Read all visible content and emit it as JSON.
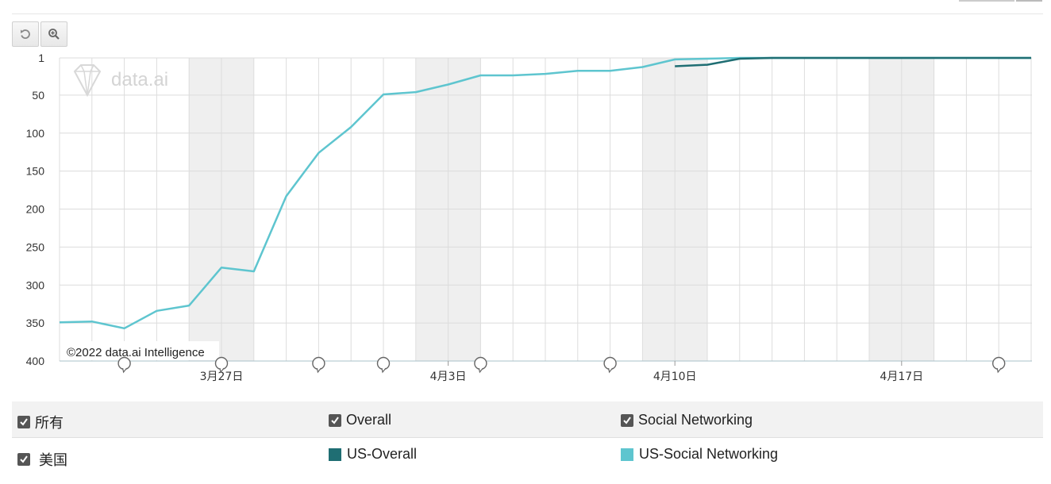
{
  "toolbar": {
    "reset_icon": "undo-icon",
    "zoom_icon": "zoom-in-icon"
  },
  "watermark": {
    "logo_text": "data.ai",
    "copyright": "©2022 data.ai Intelligence"
  },
  "chart_data": {
    "type": "line",
    "y_axis": {
      "reversed": true,
      "range": [
        1,
        400
      ],
      "ticks": [
        1,
        50,
        100,
        150,
        200,
        250,
        300,
        350,
        400
      ]
    },
    "x_axis": {
      "start": "3月22日",
      "end": "4月21日",
      "tick_labels": [
        {
          "label": "3月27日",
          "day": 5
        },
        {
          "label": "4月3日",
          "day": 12
        },
        {
          "label": "4月10日",
          "day": 19
        },
        {
          "label": "4月17日",
          "day": 26
        }
      ]
    },
    "weekend_bands": [
      [
        4,
        6
      ],
      [
        11,
        13
      ],
      [
        18,
        20
      ],
      [
        25,
        27
      ]
    ],
    "annotation_days": [
      2,
      5,
      8,
      10,
      13,
      17,
      29
    ],
    "grid": true,
    "series": [
      {
        "name": "US-Overall",
        "color": "#1f6e73",
        "points": [
          [
            19,
            12
          ],
          [
            20,
            10
          ],
          [
            21,
            2
          ],
          [
            22,
            1
          ],
          [
            23,
            1
          ],
          [
            24,
            1
          ],
          [
            25,
            1
          ],
          [
            26,
            1
          ],
          [
            27,
            1
          ],
          [
            28,
            1
          ],
          [
            29,
            1
          ],
          [
            30,
            1
          ]
        ]
      },
      {
        "name": "US-Social Networking",
        "color": "#5ec5cf",
        "points": [
          [
            0,
            349
          ],
          [
            1,
            348
          ],
          [
            2,
            357
          ],
          [
            3,
            334
          ],
          [
            4,
            327
          ],
          [
            5,
            277
          ],
          [
            6,
            282
          ],
          [
            7,
            183
          ],
          [
            8,
            126
          ],
          [
            9,
            92
          ],
          [
            10,
            49
          ],
          [
            11,
            46
          ],
          [
            12,
            36
          ],
          [
            13,
            24
          ],
          [
            14,
            24
          ],
          [
            15,
            22
          ],
          [
            16,
            18
          ],
          [
            17,
            18
          ],
          [
            18,
            13
          ],
          [
            19,
            3
          ],
          [
            20,
            2
          ],
          [
            21,
            1
          ],
          [
            22,
            1
          ],
          [
            23,
            1
          ],
          [
            24,
            1
          ],
          [
            25,
            1
          ],
          [
            26,
            1
          ],
          [
            27,
            1
          ],
          [
            28,
            1
          ],
          [
            29,
            1
          ],
          [
            30,
            1
          ]
        ]
      }
    ]
  },
  "legend": {
    "row1": [
      {
        "label": "所有",
        "checked": true
      },
      {
        "label": "Overall",
        "checked": true
      },
      {
        "label": "Social Networking",
        "checked": true
      }
    ],
    "row2": [
      {
        "label": "美国",
        "checked": true
      },
      {
        "label": "US-Overall",
        "color": "#1f6e73"
      },
      {
        "label": "US-Social Networking",
        "color": "#5ec5cf"
      }
    ]
  }
}
